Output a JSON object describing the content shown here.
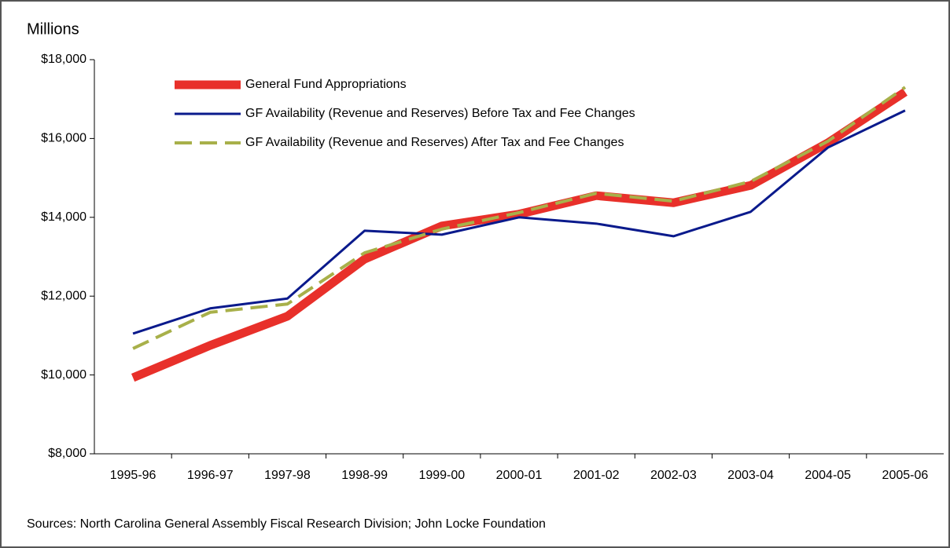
{
  "chart_data": {
    "type": "line",
    "y_label": "Millions",
    "source": "Sources: North Carolina General Assembly Fiscal Research Division; John Locke Foundation",
    "categories": [
      "1995-96",
      "1996-97",
      "1997-98",
      "1998-99",
      "1999-00",
      "2000-01",
      "2001-02",
      "2002-03",
      "2003-04",
      "2004-05",
      "2005-06"
    ],
    "series": [
      {
        "name": "General Fund Appropriations",
        "color": "#e8302a",
        "width": 11,
        "dashed": false,
        "values": [
          9930,
          10750,
          11490,
          12940,
          13780,
          14080,
          14550,
          14370,
          14810,
          15890,
          17180
        ]
      },
      {
        "name": "GF Availability (Revenue and Reserves) Before Tax and Fee Changes",
        "color": "#0a1a8c",
        "width": 3,
        "dashed": false,
        "values": [
          11050,
          11690,
          11940,
          13660,
          13560,
          14000,
          13840,
          13520,
          14140,
          15770,
          16710
        ]
      },
      {
        "name": "GF Availability (Revenue and Reserves) After Tax and Fee Changes",
        "color": "#a8b04a",
        "width": 4,
        "dashed": true,
        "values": [
          10670,
          11590,
          11800,
          13100,
          13700,
          14120,
          14610,
          14410,
          14910,
          15930,
          17300
        ]
      }
    ],
    "ylim": [
      8000,
      18000
    ],
    "yticks": [
      {
        "value": 8000,
        "label": "$8,000"
      },
      {
        "value": 10000,
        "label": "$10,000"
      },
      {
        "value": 12000,
        "label": "$12,000"
      },
      {
        "value": 14000,
        "label": "$14,000"
      },
      {
        "value": 16000,
        "label": "$16,000"
      },
      {
        "value": 18000,
        "label": "$18,000"
      }
    ],
    "grid": false,
    "legend": "upper-left"
  }
}
